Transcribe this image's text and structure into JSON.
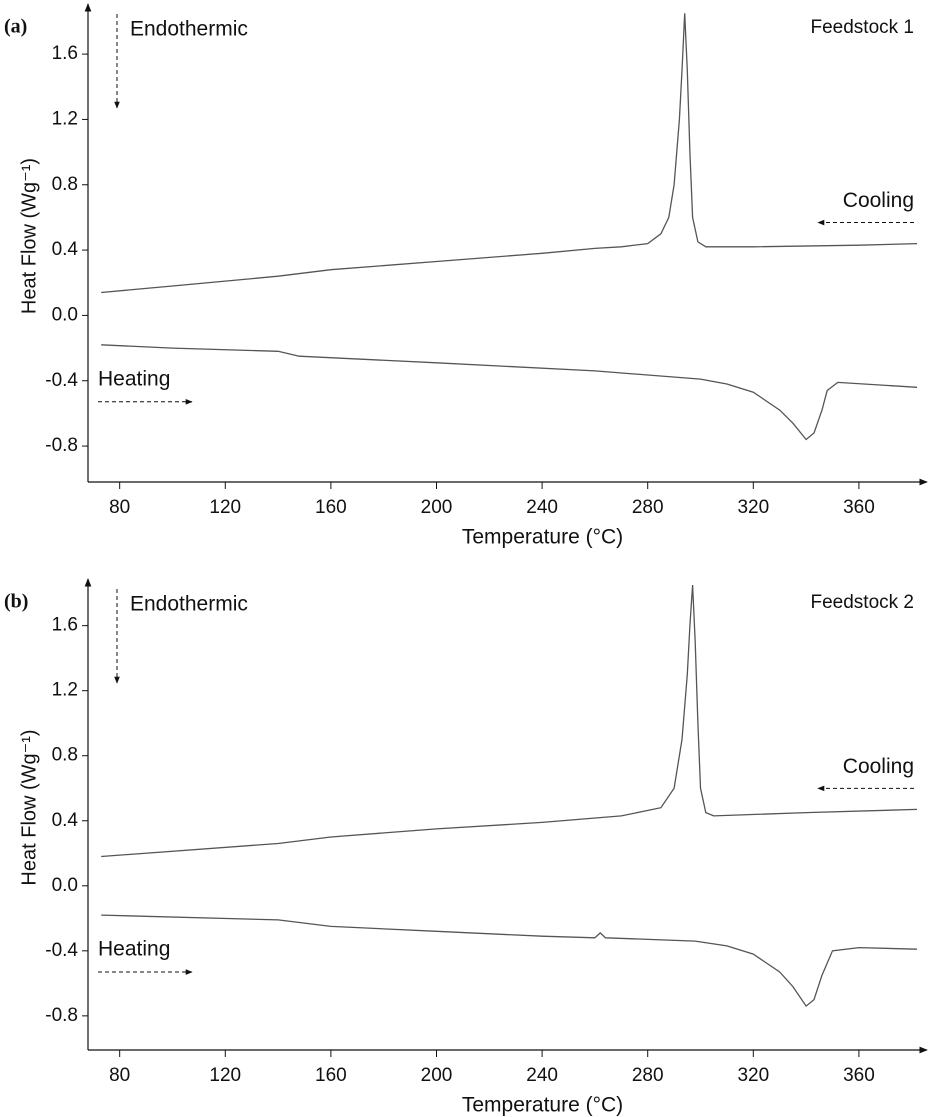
{
  "chart_data": [
    {
      "type": "line",
      "panel_label": "(a)",
      "title": "Feedstock 1",
      "annotation": "Endothermic",
      "xlabel": "Temperature (°C)",
      "ylabel": "Heat Flow (Wg⁻¹)",
      "xlim": [
        68,
        382
      ],
      "ylim": [
        -1.02,
        1.87
      ],
      "xticks": [
        80,
        120,
        160,
        200,
        240,
        280,
        320,
        360
      ],
      "yticks": [
        -0.8,
        -0.4,
        {
          "value": 0,
          "label": "0.0"
        },
        0.4,
        0.8,
        1.2,
        1.6
      ],
      "series": [
        {
          "name": "Cooling",
          "color": "#555555",
          "x": [
            73,
            100,
            140,
            160,
            200,
            240,
            260,
            270,
            280,
            285,
            288,
            290,
            292,
            293,
            294,
            295,
            296,
            297,
            299,
            302,
            320,
            360,
            382
          ],
          "values": [
            0.14,
            0.18,
            0.24,
            0.28,
            0.33,
            0.38,
            0.41,
            0.42,
            0.44,
            0.5,
            0.6,
            0.8,
            1.2,
            1.5,
            1.85,
            1.5,
            1.0,
            0.6,
            0.45,
            0.42,
            0.42,
            0.43,
            0.44
          ]
        },
        {
          "name": "Heating",
          "color": "#555555",
          "x": [
            73,
            100,
            140,
            148,
            200,
            260,
            300,
            310,
            320,
            330,
            335,
            340,
            343,
            346,
            348,
            352,
            382
          ],
          "values": [
            -0.18,
            -0.2,
            -0.22,
            -0.25,
            -0.29,
            -0.34,
            -0.39,
            -0.42,
            -0.47,
            -0.58,
            -0.66,
            -0.76,
            -0.72,
            -0.58,
            -0.46,
            -0.41,
            -0.44
          ]
        }
      ]
    },
    {
      "type": "line",
      "panel_label": "(b)",
      "title": "Feedstock 2",
      "annotation": "Endothermic",
      "xlabel": "Temperature (°C)",
      "ylabel": "Heat Flow (Wg⁻¹)",
      "xlim": [
        68,
        382
      ],
      "ylim": [
        -1.01,
        1.85
      ],
      "xticks": [
        80,
        120,
        160,
        200,
        240,
        280,
        320,
        360
      ],
      "yticks": [
        -0.8,
        -0.4,
        {
          "value": 0,
          "label": "0.0"
        },
        0.4,
        0.8,
        1.2,
        1.6
      ],
      "series": [
        {
          "name": "Cooling",
          "color": "#555555",
          "x": [
            73,
            140,
            160,
            200,
            240,
            270,
            285,
            290,
            293,
            295,
            296,
            297,
            298,
            299,
            300,
            302,
            305,
            340,
            382
          ],
          "values": [
            0.18,
            0.26,
            0.3,
            0.35,
            0.39,
            0.43,
            0.48,
            0.6,
            0.9,
            1.3,
            1.6,
            1.85,
            1.5,
            1.0,
            0.6,
            0.45,
            0.43,
            0.45,
            0.47
          ]
        },
        {
          "name": "Heating",
          "color": "#555555",
          "x": [
            73,
            140,
            160,
            200,
            240,
            260,
            262,
            264,
            298,
            310,
            320,
            330,
            335,
            340,
            343,
            346,
            350,
            360,
            382
          ],
          "values": [
            -0.18,
            -0.21,
            -0.25,
            -0.28,
            -0.31,
            -0.32,
            -0.29,
            -0.32,
            -0.34,
            -0.37,
            -0.42,
            -0.53,
            -0.62,
            -0.74,
            -0.7,
            -0.55,
            -0.4,
            -0.38,
            -0.39
          ]
        }
      ]
    }
  ]
}
